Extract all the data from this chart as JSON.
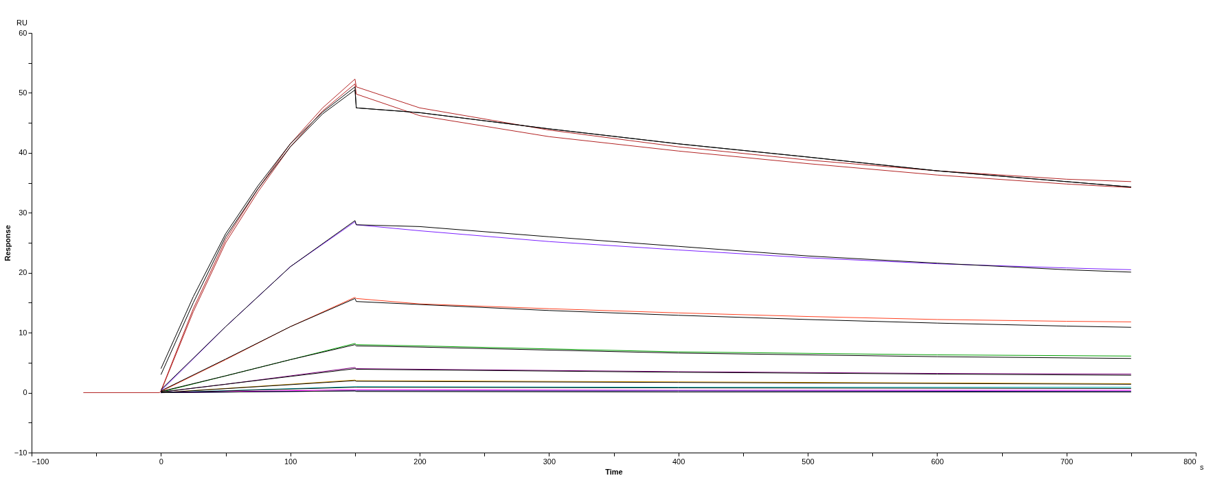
{
  "chart_data": {
    "type": "line",
    "xlabel": "Time",
    "ylabel": "Response",
    "annotations": [
      "RU",
      "s"
    ],
    "xlim": [
      -100,
      800
    ],
    "ylim": [
      -10,
      60
    ],
    "xticks": [
      -100,
      {
        "value": -50,
        "label": null
      },
      0,
      {
        "value": 50,
        "label": null
      },
      100,
      {
        "value": 150,
        "label": null
      },
      200,
      {
        "value": 250,
        "label": null
      },
      300,
      {
        "value": 350,
        "label": null
      },
      400,
      {
        "value": 450,
        "label": null
      },
      500,
      {
        "value": 550,
        "label": null
      },
      600,
      {
        "value": 650,
        "label": null
      },
      700,
      {
        "value": 750,
        "label": null
      },
      800
    ],
    "yticks": [
      -10,
      {
        "value": -5,
        "label": null
      },
      0,
      {
        "value": 5,
        "label": null
      },
      10,
      {
        "value": 15,
        "label": null
      },
      20,
      {
        "value": 25,
        "label": null
      },
      30,
      {
        "value": 35,
        "label": null
      },
      40,
      {
        "value": 45,
        "label": null
      },
      50,
      {
        "value": 55,
        "label": null
      },
      60
    ],
    "grid": false,
    "legend": false,
    "marker": "none",
    "line_style": "solid",
    "series": [
      {
        "color": "#b22222",
        "x": [
          -60,
          -1,
          0,
          25,
          50,
          75,
          100,
          125,
          150,
          151,
          200,
          300,
          400,
          500,
          600,
          700,
          750
        ],
        "values": [
          0,
          0,
          0.3,
          14,
          25.5,
          34,
          41.5,
          47.5,
          52.3,
          51,
          47.5,
          43.8,
          41,
          38.8,
          37,
          35.6,
          35.2
        ]
      },
      {
        "color": "#b22222",
        "x": [
          0,
          25,
          50,
          75,
          100,
          125,
          150,
          151,
          200,
          300,
          400,
          500,
          600,
          700,
          750
        ],
        "values": [
          0.2,
          13.5,
          25,
          33.5,
          41,
          47,
          51.5,
          49.8,
          46.2,
          42.7,
          40.3,
          38.2,
          36.3,
          34.8,
          34.2
        ]
      },
      {
        "color": "#000000",
        "x": [
          0,
          25,
          50,
          75,
          100,
          125,
          150,
          151,
          200,
          300,
          400,
          500,
          600,
          700,
          750
        ],
        "values": [
          4,
          16,
          26.5,
          34.5,
          41.5,
          46.8,
          51,
          47.5,
          46.7,
          44,
          41.5,
          39.3,
          37,
          35.2,
          34.3
        ]
      },
      {
        "color": "#000000",
        "x": [
          0,
          25,
          50,
          75,
          100,
          125,
          150,
          151,
          200,
          300,
          400,
          500,
          600,
          700,
          750
        ],
        "values": [
          3,
          15,
          26,
          34,
          41,
          46.5,
          50.5,
          47.5,
          46.7,
          44,
          41.5,
          39.3,
          37,
          35.2,
          34.3
        ]
      },
      {
        "color": "#7a1fff",
        "x": [
          0,
          50,
          100,
          150,
          151,
          200,
          300,
          400,
          500,
          600,
          700,
          750
        ],
        "values": [
          0.3,
          11,
          21,
          28.5,
          28,
          27,
          25.2,
          23.8,
          22.5,
          21.5,
          20.8,
          20.5
        ]
      },
      {
        "color": "#000000",
        "x": [
          0,
          50,
          100,
          150,
          151,
          200,
          300,
          400,
          500,
          600,
          700,
          750
        ],
        "values": [
          0.5,
          11,
          21,
          28.7,
          28,
          27.7,
          26,
          24.4,
          22.8,
          21.6,
          20.5,
          20.1
        ]
      },
      {
        "color": "#ff4020",
        "x": [
          0,
          50,
          100,
          150,
          151,
          200,
          300,
          400,
          500,
          600,
          700,
          750
        ],
        "values": [
          0.2,
          5.5,
          11,
          15.9,
          15.7,
          14.8,
          14,
          13.3,
          12.7,
          12.2,
          11.9,
          11.8
        ]
      },
      {
        "color": "#000000",
        "x": [
          0,
          50,
          100,
          150,
          151,
          200,
          300,
          400,
          500,
          600,
          700,
          750
        ],
        "values": [
          0.3,
          5.6,
          11,
          15.7,
          15.2,
          14.7,
          13.7,
          12.9,
          12.2,
          11.6,
          11.1,
          10.9
        ]
      },
      {
        "color": "#00a000",
        "x": [
          0,
          50,
          100,
          150,
          151,
          200,
          400,
          600,
          750
        ],
        "values": [
          0.1,
          2.8,
          5.5,
          8.2,
          8,
          7.8,
          6.8,
          6.3,
          6.1
        ]
      },
      {
        "color": "#000000",
        "x": [
          0,
          50,
          100,
          150,
          151,
          200,
          400,
          600,
          750
        ],
        "values": [
          0.2,
          2.8,
          5.5,
          8,
          7.8,
          7.6,
          6.6,
          6,
          5.7
        ]
      },
      {
        "color": "#800080",
        "x": [
          0,
          50,
          100,
          150,
          151,
          200,
          400,
          600,
          750
        ],
        "values": [
          0.1,
          1.4,
          2.8,
          4.2,
          4,
          3.9,
          3.5,
          3.2,
          3.1
        ]
      },
      {
        "color": "#000000",
        "x": [
          0,
          50,
          100,
          150,
          151,
          200,
          400,
          600,
          750
        ],
        "values": [
          0.1,
          1.4,
          2.7,
          4,
          3.9,
          3.8,
          3.4,
          3.1,
          2.9
        ]
      },
      {
        "color": "#e0a000",
        "x": [
          0,
          150,
          151,
          400,
          750
        ],
        "values": [
          0,
          2.1,
          2,
          1.8,
          1.5
        ]
      },
      {
        "color": "#000000",
        "x": [
          0,
          150,
          151,
          400,
          750
        ],
        "values": [
          0,
          2,
          1.9,
          1.7,
          1.4
        ]
      },
      {
        "color": "#00c0c0",
        "x": [
          0,
          150,
          151,
          400,
          750
        ],
        "values": [
          0,
          1,
          1,
          0.9,
          0.9
        ]
      },
      {
        "color": "#000000",
        "x": [
          0,
          150,
          151,
          400,
          750
        ],
        "values": [
          0,
          0.9,
          0.9,
          0.8,
          0.7
        ]
      },
      {
        "color": "#ff00ff",
        "x": [
          0,
          150,
          151,
          400,
          750
        ],
        "values": [
          0,
          0.5,
          0.5,
          0.4,
          0.4
        ]
      },
      {
        "color": "#000080",
        "x": [
          0,
          150,
          151,
          400,
          750
        ],
        "values": [
          0,
          0.3,
          0.3,
          0.3,
          0.2
        ]
      },
      {
        "color": "#000000",
        "x": [
          0,
          150,
          151,
          400,
          750
        ],
        "values": [
          0,
          0.3,
          0.2,
          0.1,
          0.1
        ]
      }
    ]
  }
}
